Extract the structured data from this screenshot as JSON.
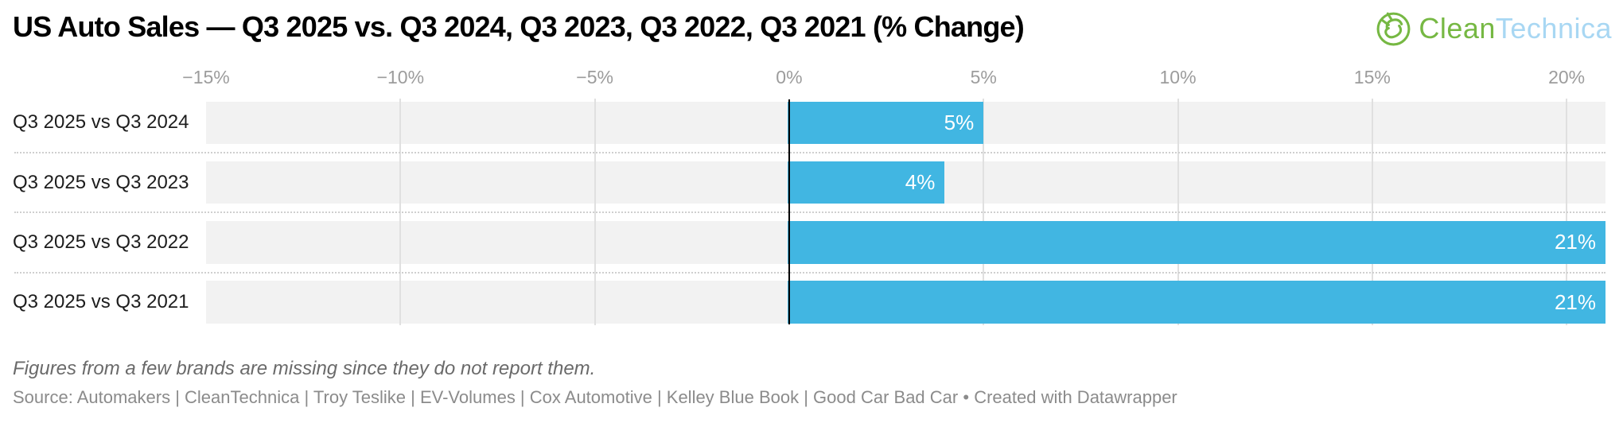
{
  "title": "US Auto Sales — Q3 2025 vs. Q3 2024, Q3 2023, Q3 2022, Q3 2021 (% Change)",
  "logo": {
    "text_primary": "Clean",
    "text_secondary": "Technica",
    "green": "#76b843",
    "blue": "#a8d7f3"
  },
  "chart_data": {
    "type": "bar",
    "orientation": "horizontal",
    "title": "US Auto Sales — Q3 2025 vs. Q3 2024, Q3 2023, Q3 2022, Q3 2021 (% Change)",
    "categories": [
      "Q3 2025 vs Q3 2024",
      "Q3 2025 vs Q3 2023",
      "Q3 2025 vs Q3 2022",
      "Q3 2025 vs Q3 2021"
    ],
    "values": [
      5,
      4,
      21,
      21
    ],
    "value_labels": [
      "5%",
      "4%",
      "21%",
      "21%"
    ],
    "xlim": [
      -15,
      21
    ],
    "x_ticks": [
      -15,
      -10,
      -5,
      0,
      5,
      10,
      15,
      20
    ],
    "x_tick_labels": [
      "−15%",
      "−10%",
      "−5%",
      "0%",
      "5%",
      "10%",
      "15%",
      "20%"
    ],
    "bar_color": "#41b6e2",
    "grid": true,
    "legend": "none"
  },
  "footer": {
    "footnote": "Figures from a few brands are missing since they do not report them.",
    "source_text": "Source: Automakers | CleanTechnica | Troy Teslike | EV-Volumes | Cox Automotive | Kelley Blue Book | Good Car Bad Car",
    "bullet": "•",
    "attribution": "Created with Datawrapper"
  }
}
